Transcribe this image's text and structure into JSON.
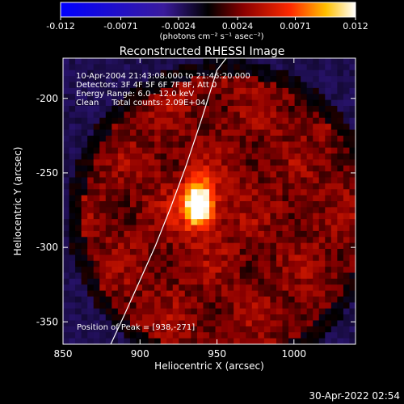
{
  "colorbar": {
    "ticks": [
      "-0.012",
      "-0.0071",
      "-0.0024",
      "0.0024",
      "0.0071",
      "0.012"
    ],
    "unit_label": "(photons cm⁻² s⁻¹ asec⁻²)",
    "min": -0.012,
    "max": 0.012
  },
  "annotations": {
    "time_range": "10-Apr-2004 21:43:08.000 to 21:46:20.000",
    "detectors": "Detectors: 3F 4F 5F 6F 7F 8F, Att 0",
    "energy": "Energy Range: 6.0 - 12.0 keV",
    "method": "Clean     Total counts: 2.09E+04",
    "peak": "Position of Peak = [938,-271]"
  },
  "footer": {
    "timestamp": "30-Apr-2022 02:54"
  },
  "chart_data": {
    "type": "heatmap",
    "title": "Reconstructed RHESSI Image",
    "xlabel": "Heliocentric X (arcsec)",
    "ylabel": "Heliocentric Y (arcsec)",
    "xlim": [
      850,
      1040
    ],
    "ylim": [
      -365,
      -173
    ],
    "xticks": [
      850,
      900,
      950,
      1000
    ],
    "yticks": [
      -200,
      -250,
      -300,
      -350
    ],
    "peak": {
      "x": 938,
      "y": -271,
      "value": 0.012
    },
    "source_extent_arcsec": {
      "sx": 7,
      "sy": 11
    },
    "limb_curve": {
      "x": [
        881,
        890,
        900,
        910,
        920,
        930,
        940,
        950,
        956
      ],
      "y": [
        -365,
        -345,
        -322,
        -299,
        -273,
        -245,
        -214,
        -181,
        -173
      ]
    }
  }
}
